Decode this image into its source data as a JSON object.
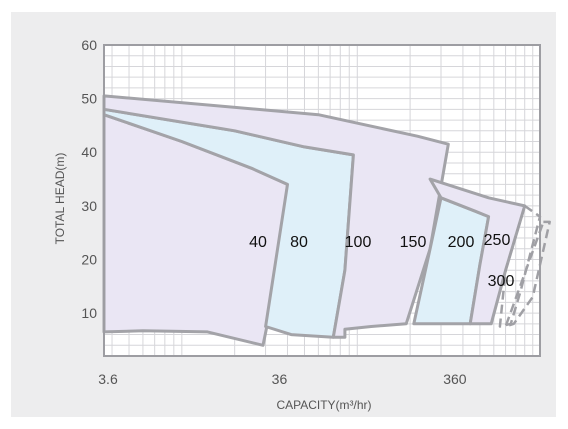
{
  "chart_data": {
    "type": "area",
    "title": "",
    "xlabel": "CAPACITY(m³/hr)",
    "ylabel": "TOTAL HEAD(m)",
    "x_scale": "log",
    "xlim": [
      3.6,
      1100
    ],
    "ylim": [
      2,
      60
    ],
    "x_tick_labels": [
      "3.6",
      "36",
      "360"
    ],
    "y_tick_labels": [
      "10",
      "20",
      "30",
      "40",
      "50",
      "60"
    ],
    "grid": true,
    "colors": {
      "outline": "#a3a3a8",
      "lavender_fill": "#eae6f4",
      "blue_fill": "#dff0f9",
      "dashed": "#a0a0a5"
    },
    "series": [
      {
        "name": "40",
        "fill": "lavender",
        "outline": "solid",
        "boundary": [
          [
            3.6,
            47
          ],
          [
            10,
            42
          ],
          [
            25,
            37
          ],
          [
            40,
            34
          ],
          [
            35,
            17
          ],
          [
            29,
            4
          ],
          [
            14,
            6.5
          ],
          [
            6,
            6.7
          ],
          [
            3.6,
            6.5
          ]
        ]
      },
      {
        "name": "80",
        "fill": "blue",
        "outline": "solid",
        "boundary": [
          [
            3.6,
            48
          ],
          [
            20,
            44
          ],
          [
            50,
            41
          ],
          [
            95,
            39.5
          ],
          [
            85,
            18
          ],
          [
            73,
            5.5
          ],
          [
            42,
            6
          ],
          [
            30,
            7.5
          ],
          [
            40,
            34
          ],
          [
            25,
            37
          ],
          [
            10,
            42
          ],
          [
            3.6,
            47
          ]
        ]
      },
      {
        "name": "100",
        "fill": "lavender",
        "outline": "solid",
        "boundary": [
          [
            3.6,
            50.5
          ],
          [
            60,
            47
          ],
          [
            220,
            43
          ],
          [
            330,
            41.5
          ],
          [
            260,
            22
          ],
          [
            190,
            8
          ],
          [
            120,
            7.5
          ],
          [
            85,
            7
          ],
          [
            85,
            5.5
          ],
          [
            73,
            5.5
          ],
          [
            85,
            18
          ],
          [
            95,
            39.5
          ],
          [
            50,
            41
          ],
          [
            20,
            44
          ],
          [
            3.6,
            48
          ]
        ]
      },
      {
        "name": "150",
        "fill": "blue",
        "outline": "solid",
        "boundary": [
          [
            300,
            31.5
          ],
          [
            470,
            29
          ],
          [
            560,
            28
          ],
          [
            500,
            19
          ],
          [
            440,
            8
          ],
          [
            300,
            8
          ],
          [
            210,
            8
          ],
          [
            260,
            22
          ]
        ]
      },
      {
        "name": "200",
        "fill": "lavender",
        "outline": "solid",
        "boundary": [
          [
            260,
            35
          ],
          [
            560,
            31.5
          ],
          [
            900,
            30
          ],
          [
            700,
            18
          ],
          [
            580,
            8
          ],
          [
            440,
            8
          ],
          [
            500,
            19
          ],
          [
            560,
            28
          ],
          [
            470,
            29
          ],
          [
            300,
            31.5
          ]
        ]
      },
      {
        "name": "250",
        "fill": "none",
        "outline": "dashed",
        "boundary": [
          [
            900,
            30
          ],
          [
            1100,
            28
          ],
          [
            850,
            14
          ],
          [
            750,
            8
          ],
          [
            650,
            7.5
          ],
          [
            700,
            18
          ]
        ]
      },
      {
        "name": "300",
        "fill": "none",
        "outline": "dashed",
        "boundary": [
          [
            1150,
            27
          ],
          [
            1250,
            27
          ],
          [
            1000,
            13
          ],
          [
            780,
            8
          ],
          [
            700,
            7.5
          ]
        ]
      }
    ]
  }
}
